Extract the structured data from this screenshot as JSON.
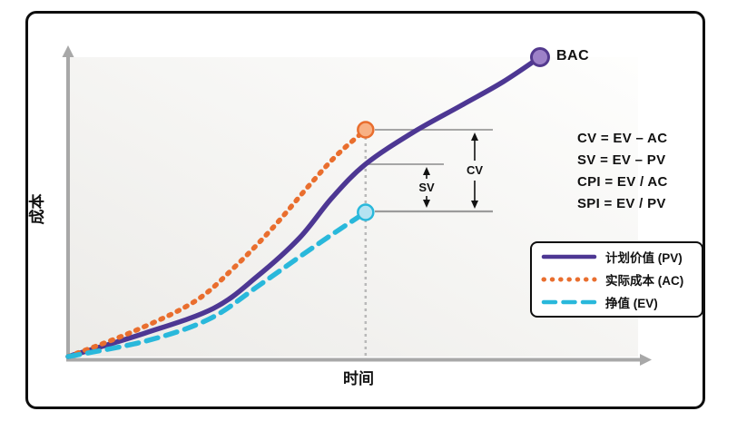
{
  "chart_data": {
    "type": "line",
    "xlabel": "时间",
    "ylabel": "成本",
    "x_range_normalized": [
      0,
      1
    ],
    "y_range_normalized": [
      0,
      1
    ],
    "grid": false,
    "legend_position": "bottom-right",
    "status_t": 0.522,
    "series": [
      {
        "name": "计划价值 (PV)",
        "style": "solid",
        "color": "#4D3793",
        "points": [
          [
            0,
            0.006
          ],
          [
            0.135,
            0.084
          ],
          [
            0.255,
            0.166
          ],
          [
            0.331,
            0.271
          ],
          [
            0.406,
            0.4
          ],
          [
            0.463,
            0.533
          ],
          [
            0.522,
            0.645
          ],
          [
            0.605,
            0.75
          ],
          [
            0.693,
            0.843
          ],
          [
            0.764,
            0.919
          ],
          [
            0.828,
            1.0
          ]
        ]
      },
      {
        "name": "实际成本 (AC)",
        "style": "dotted",
        "color": "#E96E2E",
        "points": [
          [
            0,
            0.006
          ],
          [
            0.119,
            0.093
          ],
          [
            0.223,
            0.19
          ],
          [
            0.291,
            0.301
          ],
          [
            0.358,
            0.431
          ],
          [
            0.422,
            0.572
          ],
          [
            0.47,
            0.672
          ],
          [
            0.522,
            0.759
          ]
        ]
      },
      {
        "name": "挣值 (EV)",
        "style": "dashed",
        "color": "#29B8DB",
        "points": [
          [
            0,
            0.006
          ],
          [
            0.135,
            0.057
          ],
          [
            0.247,
            0.13
          ],
          [
            0.334,
            0.241
          ],
          [
            0.406,
            0.337
          ],
          [
            0.462,
            0.41
          ],
          [
            0.522,
            0.485
          ]
        ]
      }
    ],
    "markers": {
      "bac": {
        "t": 0.828,
        "v": 1.0
      },
      "ac": {
        "t": 0.522,
        "v": 0.759
      },
      "ev": {
        "t": 0.522,
        "v": 0.485
      }
    }
  },
  "labels": {
    "bac": "BAC",
    "cv": "CV",
    "sv": "SV"
  },
  "formulas": {
    "lines": [
      "CV = EV – AC",
      "SV = EV – PV",
      "CPI = EV / AC",
      "SPI = EV / PV"
    ]
  },
  "legend": {
    "items": [
      {
        "label": "计划价值 (PV)",
        "style": "solid",
        "color": "#4D3793"
      },
      {
        "label": "实际成本 (AC)",
        "style": "dotted",
        "color": "#E96E2E"
      },
      {
        "label": "挣值 (EV)",
        "style": "dashed",
        "color": "#29B8DB"
      }
    ]
  },
  "colors": {
    "pv": "#4D3793",
    "ac": "#E96E2E",
    "ev": "#29B8DB",
    "bac_fill": "#9D81C8",
    "bac_stroke": "#53398E",
    "ac_fill": "#F8B184",
    "ev_fill": "#B5E3F2",
    "axis": "#A8A8A8",
    "ref_line": "#9B9B9B",
    "status_line": "#B9B9B9",
    "ink": "#121212",
    "card_border": "#0E0E0E",
    "plot_bg_start": "#ECEBE8",
    "plot_bg_end": "#FEFEFD"
  }
}
